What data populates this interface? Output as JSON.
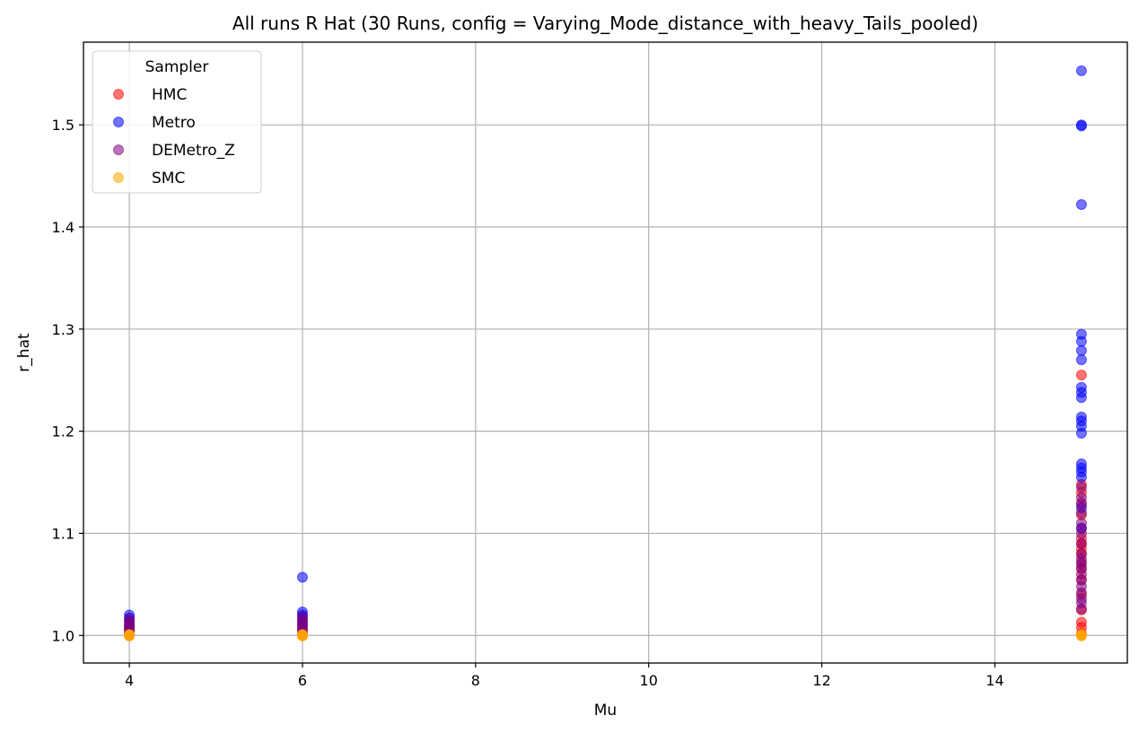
{
  "chart_data": {
    "type": "scatter",
    "title": "All runs R Hat (30 Runs, config = Varying_Mode_distance_with_heavy_Tails_pooled)",
    "xlabel": "Mu",
    "ylabel": "r_hat",
    "xlim": [
      3.47,
      15.53
    ],
    "ylim": [
      0.973,
      1.581
    ],
    "xticks": [
      4,
      6,
      8,
      10,
      12,
      14
    ],
    "yticks": [
      1.0,
      1.1,
      1.2,
      1.3,
      1.4,
      1.5
    ],
    "xtick_labels": [
      "4",
      "6",
      "8",
      "10",
      "12",
      "14"
    ],
    "ytick_labels": [
      "1.0",
      "1.1",
      "1.2",
      "1.3",
      "1.4",
      "1.5"
    ],
    "grid": true,
    "legend": {
      "title": "Sampler",
      "placement": "top-left"
    },
    "series": [
      {
        "name": "HMC",
        "color": "#ff0000",
        "points": [
          [
            4,
            1.0
          ],
          [
            4,
            1.002
          ],
          [
            4,
            1.004
          ],
          [
            4,
            1.006
          ],
          [
            4,
            1.008
          ],
          [
            4,
            1.01
          ],
          [
            6,
            1.0
          ],
          [
            6,
            1.003
          ],
          [
            6,
            1.005
          ],
          [
            6,
            1.008
          ],
          [
            6,
            1.012
          ],
          [
            6,
            1.018
          ],
          [
            15,
            1.002
          ],
          [
            15,
            1.008
          ],
          [
            15,
            1.013
          ],
          [
            15,
            1.025
          ],
          [
            15,
            1.04
          ],
          [
            15,
            1.055
          ],
          [
            15,
            1.065
          ],
          [
            15,
            1.072
          ],
          [
            15,
            1.08
          ],
          [
            15,
            1.085
          ],
          [
            15,
            1.09
          ],
          [
            15,
            1.095
          ],
          [
            15,
            1.105
          ],
          [
            15,
            1.118
          ],
          [
            15,
            1.128
          ],
          [
            15,
            1.14
          ],
          [
            15,
            1.148
          ],
          [
            15,
            1.255
          ]
        ]
      },
      {
        "name": "Metro",
        "color": "#0000ff",
        "points": [
          [
            4,
            1.01
          ],
          [
            4,
            1.014
          ],
          [
            4,
            1.017
          ],
          [
            4,
            1.02
          ],
          [
            6,
            1.01
          ],
          [
            6,
            1.015
          ],
          [
            6,
            1.02
          ],
          [
            6,
            1.023
          ],
          [
            6,
            1.057
          ],
          [
            15,
            1.553
          ],
          [
            15,
            1.5
          ],
          [
            15,
            1.499
          ],
          [
            15,
            1.422
          ],
          [
            15,
            1.295
          ],
          [
            15,
            1.288
          ],
          [
            15,
            1.279
          ],
          [
            15,
            1.27
          ],
          [
            15,
            1.243
          ],
          [
            15,
            1.238
          ],
          [
            15,
            1.233
          ],
          [
            15,
            1.214
          ],
          [
            15,
            1.21
          ],
          [
            15,
            1.205
          ],
          [
            15,
            1.198
          ],
          [
            15,
            1.168
          ],
          [
            15,
            1.164
          ],
          [
            15,
            1.16
          ],
          [
            15,
            1.155
          ],
          [
            15,
            1.125
          ],
          [
            15,
            1.105
          ]
        ]
      },
      {
        "name": "DEMetro_Z",
        "color": "#800080",
        "points": [
          [
            4,
            1.001
          ],
          [
            4,
            1.004
          ],
          [
            4,
            1.007
          ],
          [
            4,
            1.01
          ],
          [
            4,
            1.013
          ],
          [
            4,
            1.016
          ],
          [
            6,
            1.002
          ],
          [
            6,
            1.006
          ],
          [
            6,
            1.01
          ],
          [
            6,
            1.014
          ],
          [
            6,
            1.018
          ],
          [
            15,
            1.026
          ],
          [
            15,
            1.032
          ],
          [
            15,
            1.036
          ],
          [
            15,
            1.042
          ],
          [
            15,
            1.048
          ],
          [
            15,
            1.054
          ],
          [
            15,
            1.06
          ],
          [
            15,
            1.066
          ],
          [
            15,
            1.07
          ],
          [
            15,
            1.075
          ],
          [
            15,
            1.08
          ],
          [
            15,
            1.09
          ],
          [
            15,
            1.1
          ],
          [
            15,
            1.11
          ],
          [
            15,
            1.12
          ],
          [
            15,
            1.13
          ],
          [
            15,
            1.135
          ],
          [
            15,
            1.145
          ]
        ]
      },
      {
        "name": "SMC",
        "color": "#ffa500",
        "points": [
          [
            4,
            1.0
          ],
          [
            4,
            1.0005
          ],
          [
            4,
            1.001
          ],
          [
            4,
            0.9995
          ],
          [
            6,
            1.0
          ],
          [
            6,
            1.0005
          ],
          [
            6,
            1.001
          ],
          [
            6,
            0.9995
          ],
          [
            15,
            1.0
          ],
          [
            15,
            1.0005
          ],
          [
            15,
            1.001
          ],
          [
            15,
            0.9995
          ]
        ]
      }
    ]
  }
}
